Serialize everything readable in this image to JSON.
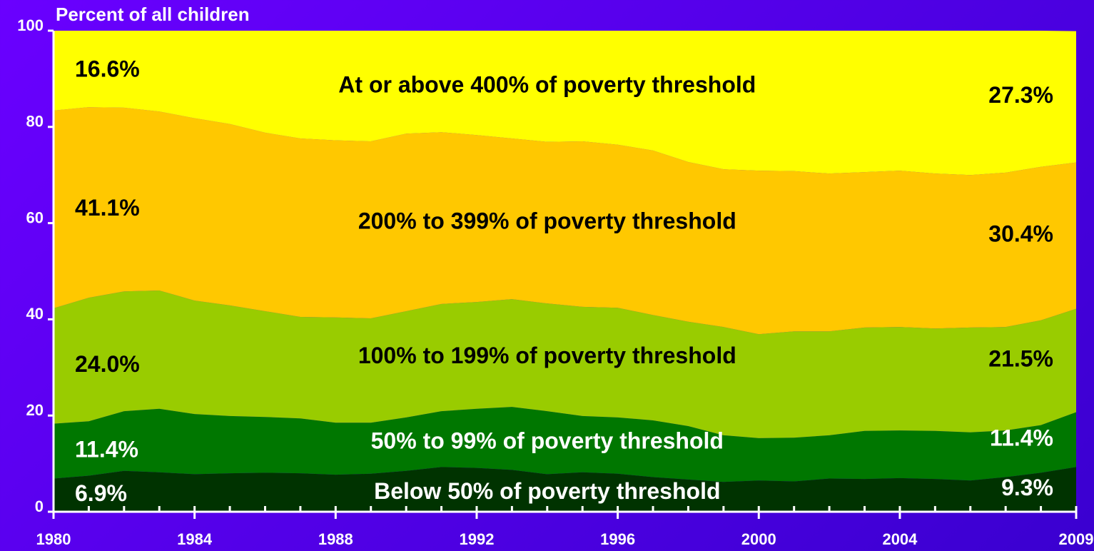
{
  "chart_data": {
    "type": "stacked_area",
    "ylabel": "Percent of all children",
    "x": [
      1980,
      1981,
      1982,
      1983,
      1984,
      1985,
      1986,
      1987,
      1988,
      1989,
      1990,
      1991,
      1992,
      1993,
      1994,
      1995,
      1996,
      1997,
      1998,
      1999,
      2000,
      2001,
      2002,
      2003,
      2004,
      2005,
      2006,
      2007,
      2008,
      2009
    ],
    "xlim": [
      1980,
      2009
    ],
    "xticks": [
      1980,
      1984,
      1988,
      1992,
      1996,
      2000,
      2004,
      2009
    ],
    "ylim": [
      0,
      100
    ],
    "yticks": [
      0,
      20,
      40,
      60,
      80,
      100
    ],
    "series": [
      {
        "name": "Below 50% of poverty threshold",
        "color": "#003300",
        "values": [
          6.9,
          7.5,
          8.5,
          8.2,
          7.8,
          8.0,
          8.1,
          8.0,
          7.7,
          7.9,
          8.5,
          9.3,
          9.1,
          8.7,
          7.8,
          8.2,
          7.9,
          7.2,
          6.7,
          6.2,
          6.5,
          6.3,
          6.9,
          6.8,
          7.0,
          6.8,
          6.5,
          7.2,
          8.1,
          9.3
        ],
        "value_labels": [
          "6.9%",
          null,
          null,
          null,
          null,
          null,
          null,
          null,
          null,
          null,
          null,
          null,
          null,
          null,
          null,
          null,
          null,
          null,
          null,
          null,
          null,
          null,
          null,
          null,
          null,
          null,
          null,
          null,
          null,
          "9.3%"
        ]
      },
      {
        "name": "50% to 99% of poverty threshold",
        "color": "#007700",
        "values": [
          11.4,
          11.3,
          12.4,
          13.2,
          12.5,
          11.9,
          11.6,
          11.4,
          10.8,
          10.6,
          11.1,
          11.6,
          12.3,
          13.1,
          13.1,
          11.7,
          11.7,
          11.8,
          11.1,
          9.7,
          8.8,
          9.1,
          9.0,
          10.0,
          9.9,
          10.0,
          10.0,
          9.7,
          9.9,
          11.4
        ],
        "value_labels": [
          "11.4%",
          null,
          null,
          null,
          null,
          null,
          null,
          null,
          null,
          null,
          null,
          null,
          null,
          null,
          null,
          null,
          null,
          null,
          null,
          null,
          null,
          null,
          null,
          null,
          null,
          null,
          null,
          null,
          null,
          "11.4%"
        ]
      },
      {
        "name": "100% to 199% of poverty threshold",
        "color": "#99cc00",
        "values": [
          24.0,
          25.7,
          24.9,
          24.6,
          23.6,
          23.0,
          22.0,
          21.1,
          21.9,
          21.7,
          22.1,
          22.3,
          22.2,
          22.4,
          22.4,
          22.7,
          22.8,
          21.9,
          21.7,
          22.5,
          21.6,
          22.1,
          21.6,
          21.5,
          21.5,
          21.3,
          21.8,
          21.5,
          21.8,
          21.5
        ],
        "value_labels": [
          "24.0%",
          null,
          null,
          null,
          null,
          null,
          null,
          null,
          null,
          null,
          null,
          null,
          null,
          null,
          null,
          null,
          null,
          null,
          null,
          null,
          null,
          null,
          null,
          null,
          null,
          null,
          null,
          null,
          null,
          "21.5%"
        ]
      },
      {
        "name": "200% to 399% of poverty threshold",
        "color": "#ffc800",
        "values": [
          41.1,
          39.6,
          38.2,
          37.2,
          37.9,
          37.7,
          37.1,
          37.1,
          36.8,
          36.8,
          36.9,
          35.7,
          34.7,
          33.4,
          33.6,
          34.4,
          33.9,
          34.2,
          33.2,
          32.8,
          34.0,
          33.3,
          32.8,
          32.3,
          32.5,
          32.2,
          31.7,
          32.1,
          31.9,
          30.4
        ],
        "value_labels": [
          "41.1%",
          null,
          null,
          null,
          null,
          null,
          null,
          null,
          null,
          null,
          null,
          null,
          null,
          null,
          null,
          null,
          null,
          null,
          null,
          null,
          null,
          null,
          null,
          null,
          null,
          null,
          null,
          null,
          null,
          "30.4%"
        ]
      },
      {
        "name": "At or above 400% of poverty threshold",
        "color": "#ffff00",
        "values": [
          16.6,
          15.9,
          16.0,
          16.8,
          18.2,
          19.4,
          21.2,
          22.4,
          22.8,
          23.0,
          21.4,
          21.1,
          21.7,
          22.4,
          23.1,
          23.0,
          23.7,
          24.9,
          27.3,
          28.8,
          29.1,
          29.2,
          29.7,
          29.4,
          29.1,
          29.7,
          30.0,
          29.5,
          28.3,
          27.3
        ],
        "value_labels": [
          "16.6%",
          null,
          null,
          null,
          null,
          null,
          null,
          null,
          null,
          null,
          null,
          null,
          null,
          null,
          null,
          null,
          null,
          null,
          null,
          null,
          null,
          null,
          null,
          null,
          null,
          null,
          null,
          null,
          null,
          "27.3%"
        ]
      }
    ]
  }
}
